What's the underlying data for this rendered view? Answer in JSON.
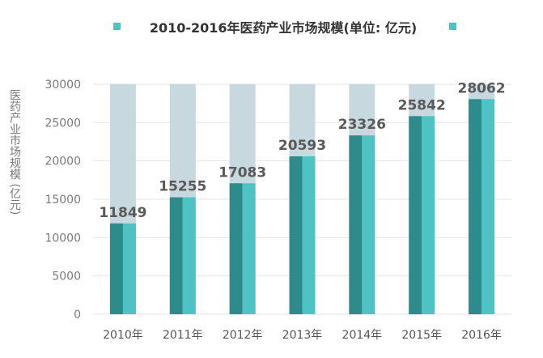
{
  "chart_data": {
    "type": "bar",
    "title": "2010-2016年医药产业市场规模(单位: 亿元)",
    "ylabel": "医药产业市场规模 (亿元)",
    "xlabel": "",
    "categories": [
      "2010年",
      "2011年",
      "2012年",
      "2013年",
      "2014年",
      "2015年",
      "2016年"
    ],
    "values": [
      11849,
      15255,
      17083,
      20593,
      23326,
      25842,
      28062
    ],
    "ylim": [
      0,
      30000
    ],
    "yticks": [
      "0",
      "5000",
      "10000",
      "15000",
      "20000",
      "25000",
      "30000"
    ],
    "grid": true,
    "legend": "none",
    "colors": {
      "bar_dark": "#2e8b8b",
      "bar_light": "#4fc3c3",
      "bar_background": "#c8d8df",
      "marker": "#4fc3c3",
      "grid": "#e6e6e6"
    }
  }
}
